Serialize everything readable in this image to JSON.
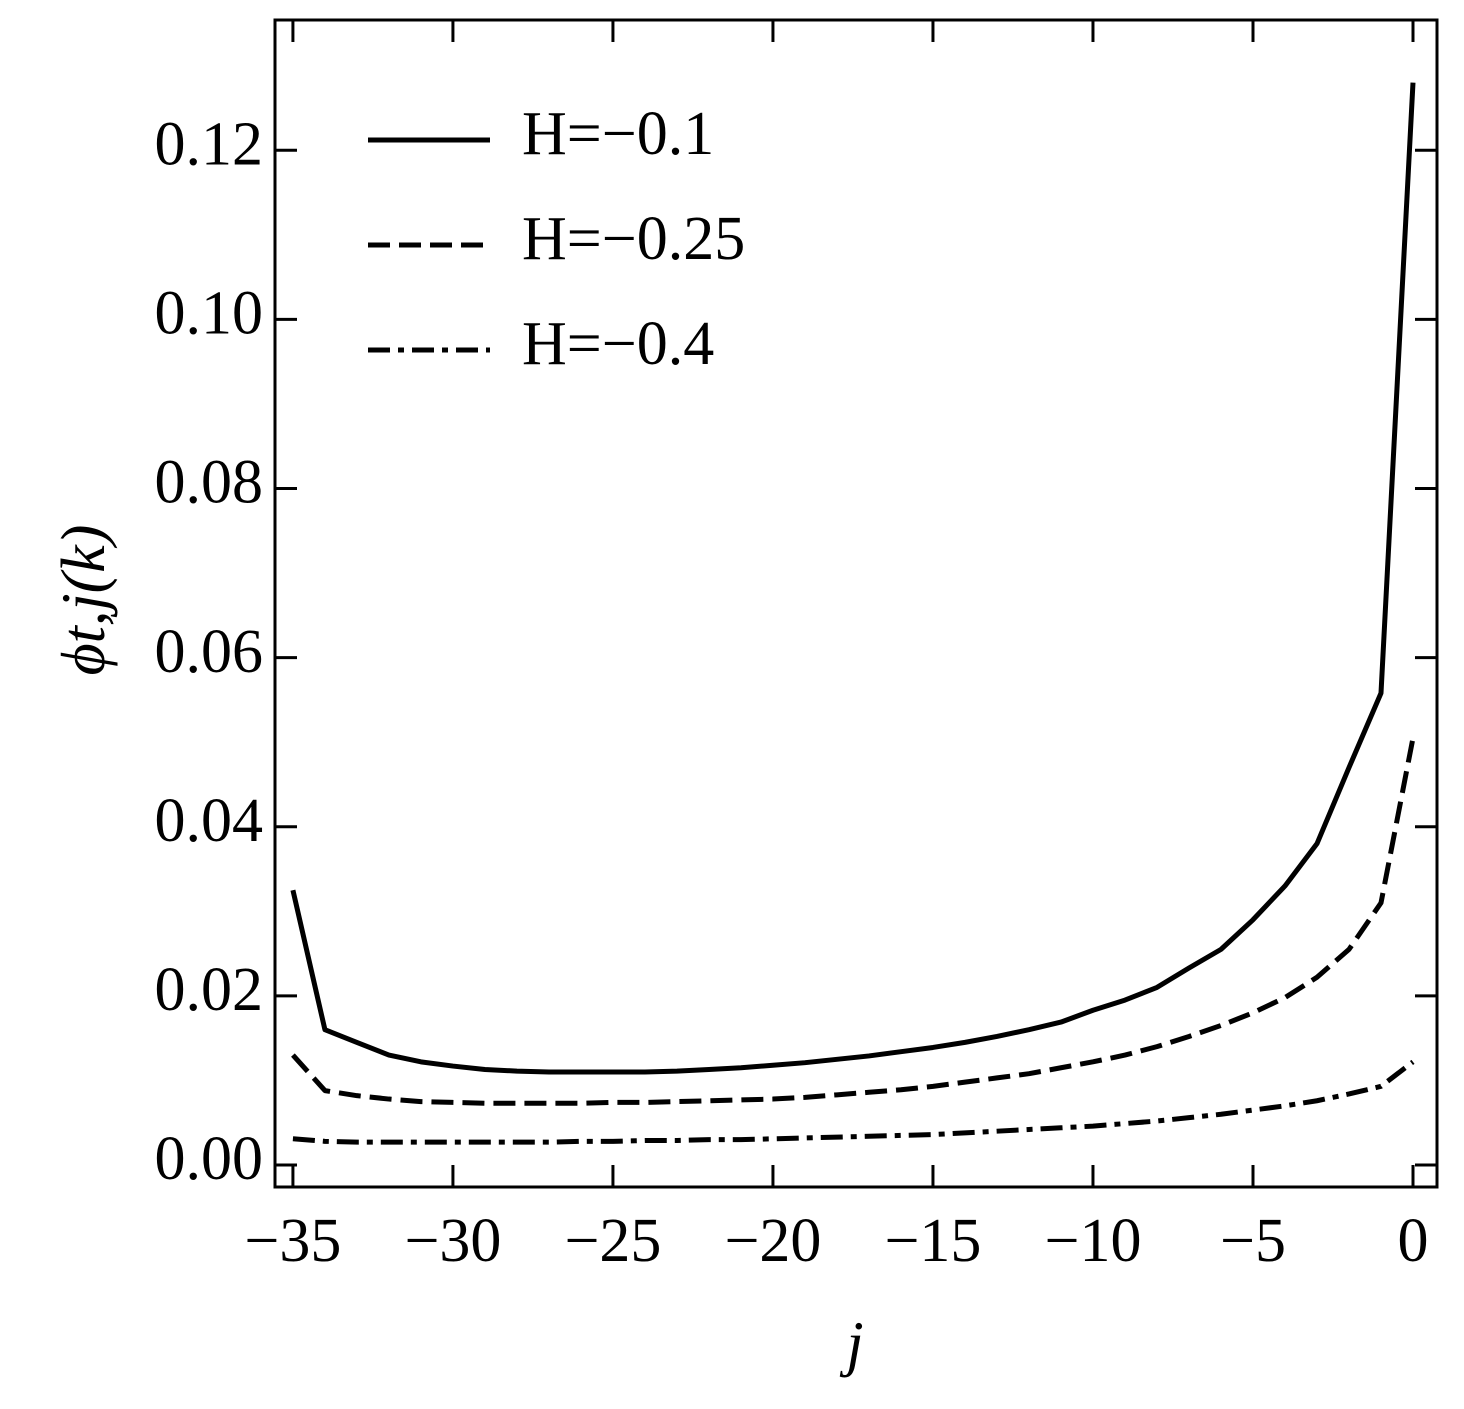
{
  "chart_data": {
    "type": "line",
    "xlabel": "j",
    "ylabel": "ϕt,j(k)",
    "x": [
      -35,
      -34,
      -33,
      -32,
      -31,
      -30,
      -29,
      -28,
      -27,
      -26,
      -25,
      -24,
      -23,
      -22,
      -21,
      -20,
      -19,
      -18,
      -17,
      -16,
      -15,
      -14,
      -13,
      -12,
      -11,
      -10,
      -9,
      -8,
      -7,
      -6,
      -5,
      -4,
      -3,
      -2,
      -1,
      0
    ],
    "series": [
      {
        "name": "H=−0.1",
        "color": "#000000",
        "dash": "solid",
        "values": [
          0.0325,
          0.016,
          0.0145,
          0.013,
          0.0122,
          0.0117,
          0.0113,
          0.0111,
          0.011,
          0.011,
          0.011,
          0.011,
          0.0111,
          0.0113,
          0.0115,
          0.0118,
          0.0121,
          0.0125,
          0.0129,
          0.0134,
          0.0139,
          0.0145,
          0.0152,
          0.016,
          0.0169,
          0.0183,
          0.0195,
          0.021,
          0.0233,
          0.0255,
          0.029,
          0.033,
          0.038,
          0.047,
          0.0558,
          0.128
        ]
      },
      {
        "name": "H=−0.25",
        "color": "#000000",
        "dash": "dashed",
        "values": [
          0.013,
          0.0088,
          0.0082,
          0.0078,
          0.0075,
          0.0074,
          0.0073,
          0.0073,
          0.0073,
          0.0073,
          0.0074,
          0.0074,
          0.0075,
          0.0076,
          0.0077,
          0.0078,
          0.008,
          0.0083,
          0.0086,
          0.0089,
          0.0093,
          0.0098,
          0.0103,
          0.0108,
          0.0115,
          0.0122,
          0.013,
          0.014,
          0.0152,
          0.0165,
          0.018,
          0.0198,
          0.0222,
          0.0255,
          0.031,
          0.0505
        ]
      },
      {
        "name": "H=−0.4",
        "color": "#000000",
        "dash": "dashdot",
        "values": [
          0.0031,
          0.0028,
          0.0027,
          0.0027,
          0.0027,
          0.0027,
          0.0027,
          0.0027,
          0.0027,
          0.0028,
          0.0028,
          0.0029,
          0.0029,
          0.003,
          0.003,
          0.0031,
          0.0032,
          0.0033,
          0.0034,
          0.0035,
          0.0036,
          0.0038,
          0.004,
          0.0042,
          0.0044,
          0.0046,
          0.0049,
          0.0052,
          0.0056,
          0.006,
          0.0065,
          0.007,
          0.0076,
          0.0084,
          0.0093,
          0.0122
        ]
      }
    ],
    "xlim": [
      -35.56,
      0.75
    ],
    "xticks": [
      {
        "value": -35,
        "label": "−35"
      },
      {
        "value": -30,
        "label": "−30"
      },
      {
        "value": -25,
        "label": "−25"
      },
      {
        "value": -20,
        "label": "−20"
      },
      {
        "value": -15,
        "label": "−15"
      },
      {
        "value": -10,
        "label": "−10"
      },
      {
        "value": -5,
        "label": "−5"
      },
      0
    ],
    "ylim": [
      -0.0026,
      0.1354
    ],
    "yticks": [
      {
        "value": 0,
        "label": "0.00"
      },
      {
        "value": 0.02,
        "label": "0.02"
      },
      {
        "value": 0.04,
        "label": "0.04"
      },
      {
        "value": 0.06,
        "label": "0.06"
      },
      {
        "value": 0.08,
        "label": "0.08"
      },
      {
        "value": 0.1,
        "label": "0.10"
      },
      {
        "value": 0.12,
        "label": "0.12"
      }
    ],
    "legend": "upper left",
    "grid": false
  }
}
